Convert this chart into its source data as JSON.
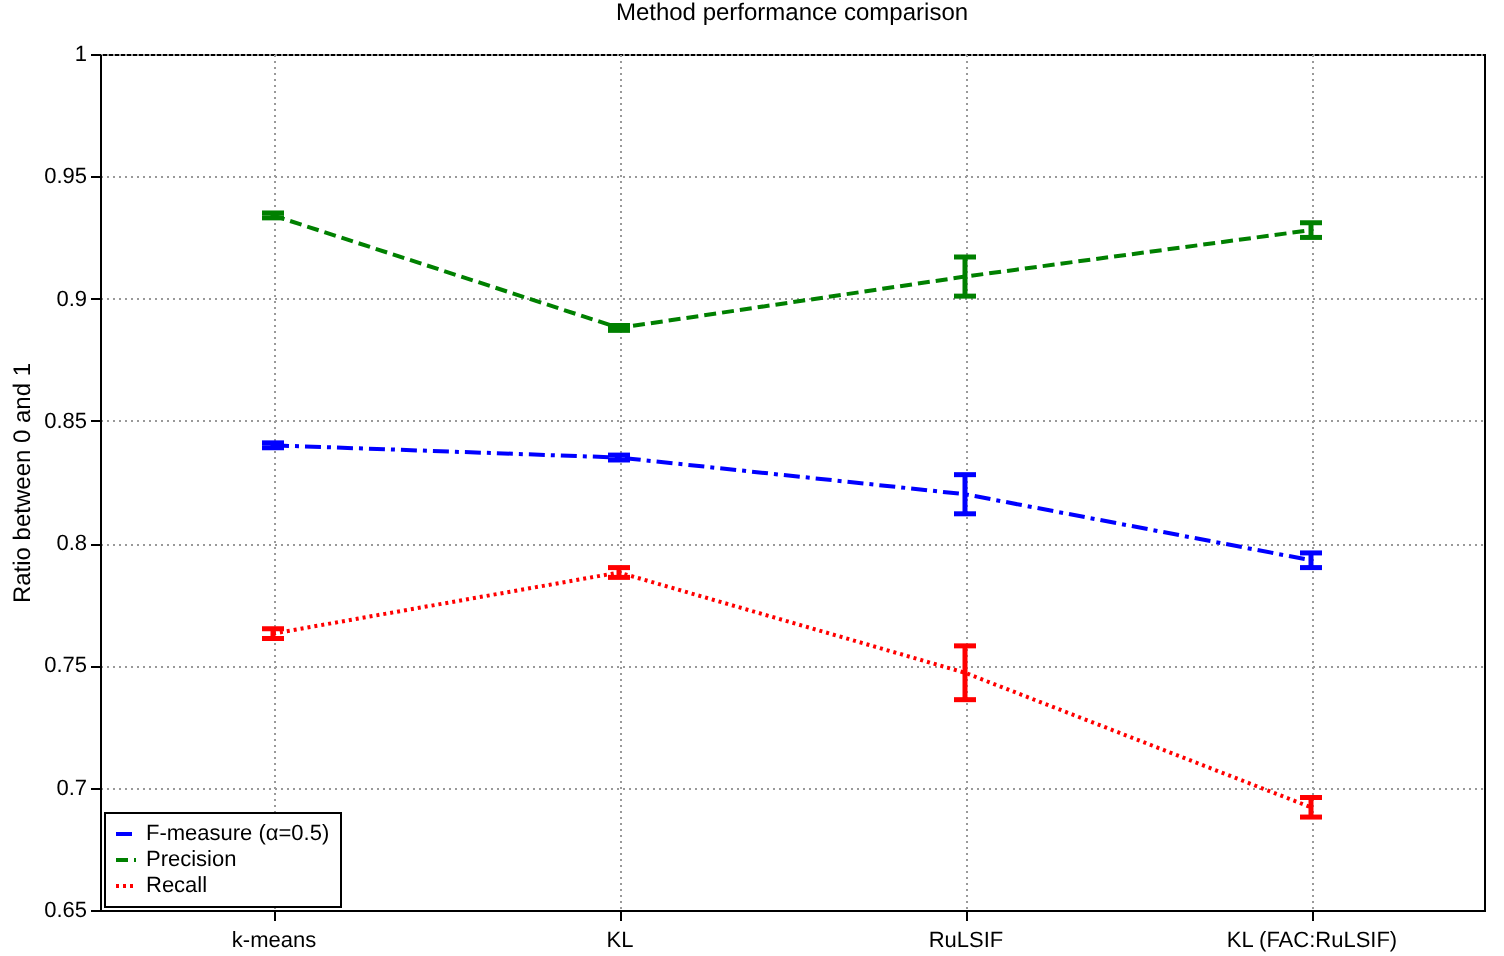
{
  "chart_data": {
    "type": "line",
    "title": "Method performance comparison",
    "ylabel": "Ratio between 0 and 1",
    "categories": [
      "k-means",
      "KL",
      "RuLSIF",
      "KL (FAC:RuLSIF)"
    ],
    "series": [
      {
        "name": "F-measure (α=0.5)",
        "color": "#0000ff",
        "line_style": "dashdot",
        "values": [
          0.84,
          0.835,
          0.82,
          0.793
        ],
        "errors": [
          0.001,
          0.001,
          0.008,
          0.003
        ]
      },
      {
        "name": "Precision",
        "color": "#008000",
        "line_style": "dashed",
        "values": [
          0.934,
          0.888,
          0.909,
          0.928
        ],
        "errors": [
          0.001,
          0.001,
          0.008,
          0.003
        ]
      },
      {
        "name": "Recall",
        "color": "#ff0000",
        "line_style": "dotted",
        "values": [
          0.763,
          0.788,
          0.747,
          0.692
        ],
        "errors": [
          0.002,
          0.002,
          0.011,
          0.004
        ]
      }
    ],
    "ylim": [
      0.65,
      1
    ],
    "yticks": [
      0.65,
      0.7,
      0.75,
      0.8,
      0.85,
      0.9,
      0.95,
      1
    ],
    "grid": true,
    "legend": "bottom left"
  }
}
